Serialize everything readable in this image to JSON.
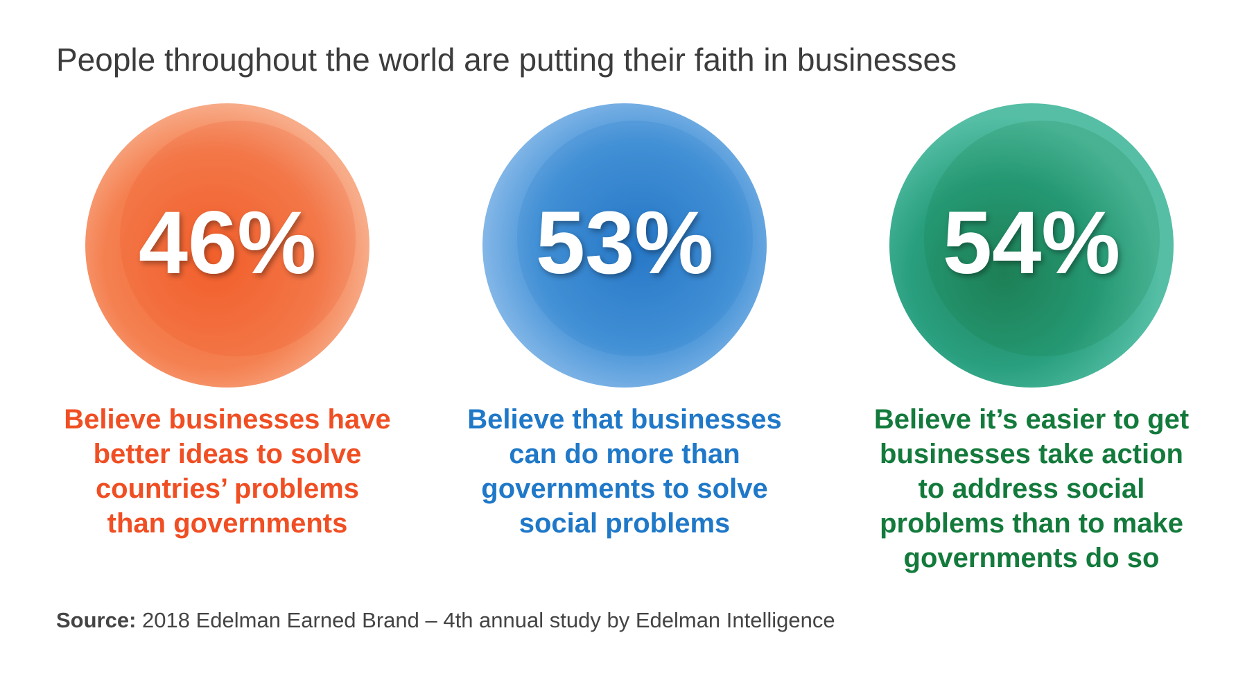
{
  "title": "People throughout the world are putting their faith in businesses",
  "stats": [
    {
      "figure": "46%",
      "color": "#f04e23",
      "description": [
        "Believe businesses have",
        "better ideas to solve",
        "countries’ problems",
        "than governments"
      ]
    },
    {
      "figure": "53%",
      "color": "#1f78c8",
      "description": [
        "Believe that businesses",
        "can do more than",
        "governments to solve",
        "social problems"
      ]
    },
    {
      "figure": "54%",
      "color": "#137a3c",
      "description": [
        "Believe it’s easier to get",
        "businesses take action",
        "to address social",
        "problems than to make",
        "governments do so"
      ]
    }
  ],
  "source": {
    "label": "Source:",
    "text": "2018 Edelman Earned Brand – 4th annual study by Edelman Intelligence"
  }
}
